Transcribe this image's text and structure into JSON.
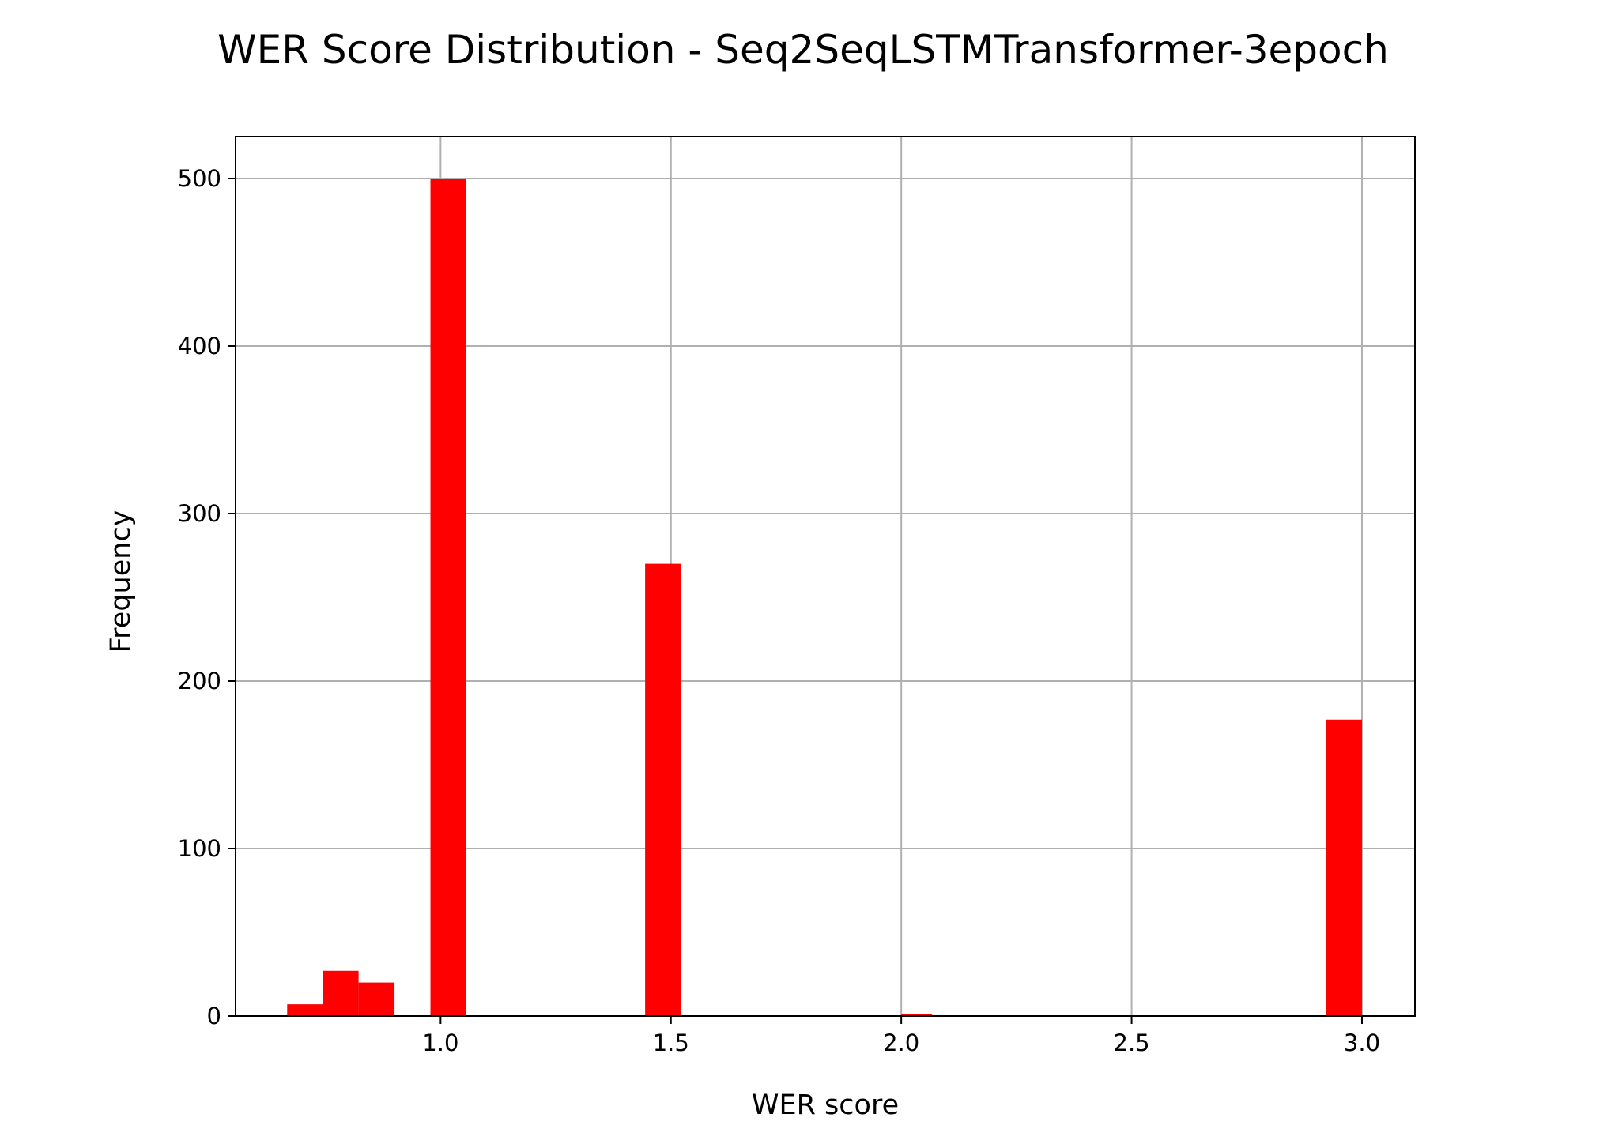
{
  "chart_data": {
    "type": "bar",
    "title": "WER Score Distribution - Seq2SeqLSTMTransformer-3epoch",
    "xlabel": "WER score",
    "ylabel": "Frequency",
    "xlim": [
      0.555,
      3.115
    ],
    "ylim": [
      0,
      525
    ],
    "grid": true,
    "bar_color": "#ff0000",
    "x_ticks": [
      {
        "value": 1.0,
        "label": "1.0"
      },
      {
        "value": 1.5,
        "label": "1.5"
      },
      {
        "value": 2.0,
        "label": "2.0"
      },
      {
        "value": 2.5,
        "label": "2.5"
      },
      {
        "value": 3.0,
        "label": "3.0"
      }
    ],
    "y_ticks": [
      {
        "value": 0,
        "label": "0"
      },
      {
        "value": 100,
        "label": "100"
      },
      {
        "value": 200,
        "label": "200"
      },
      {
        "value": 300,
        "label": "300"
      },
      {
        "value": 400,
        "label": "400"
      },
      {
        "value": 500,
        "label": "500"
      }
    ],
    "bins": [
      {
        "x0": 0.667,
        "x1": 0.744,
        "value": 7
      },
      {
        "x0": 0.744,
        "x1": 0.822,
        "value": 27
      },
      {
        "x0": 0.822,
        "x1": 0.9,
        "value": 20
      },
      {
        "x0": 0.978,
        "x1": 1.056,
        "value": 500
      },
      {
        "x0": 1.444,
        "x1": 1.522,
        "value": 270
      },
      {
        "x0": 2.0,
        "x1": 2.067,
        "value": 1
      },
      {
        "x0": 2.922,
        "x1": 3.0,
        "value": 177
      }
    ]
  }
}
